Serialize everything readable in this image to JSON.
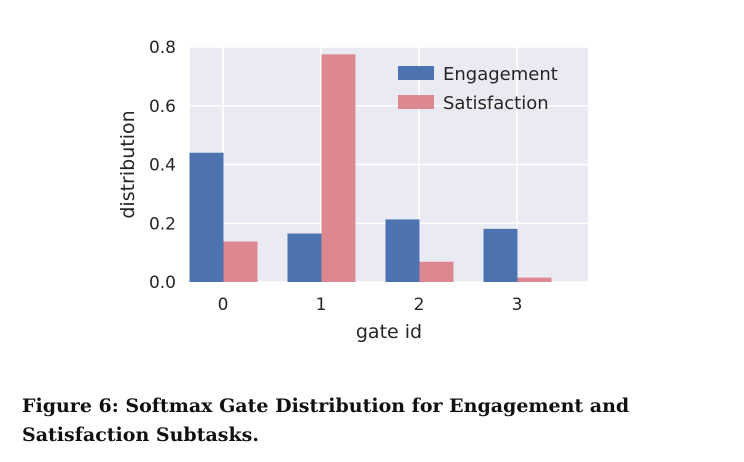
{
  "chart_data": {
    "type": "bar",
    "categories": [
      "0",
      "1",
      "2",
      "3"
    ],
    "series": [
      {
        "name": "Engagement",
        "values": [
          0.44,
          0.165,
          0.213,
          0.181
        ],
        "color": "#4c72b0"
      },
      {
        "name": "Satisfaction",
        "values": [
          0.138,
          0.775,
          0.069,
          0.015
        ],
        "color": "#dd8890"
      }
    ],
    "xlabel": "gate id",
    "ylabel": "distribution",
    "ylim": [
      0,
      0.8
    ],
    "yticks": [
      "0.0",
      "0.2",
      "0.4",
      "0.6",
      "0.8"
    ],
    "ytick_values": [
      0,
      0.2,
      0.4,
      0.6,
      0.8
    ],
    "grid": true,
    "legend_position": "top-right",
    "background": "#eaeaf2"
  },
  "caption": "Figure 6: Softmax Gate Distribution for Engagement and Satisfaction Subtasks."
}
